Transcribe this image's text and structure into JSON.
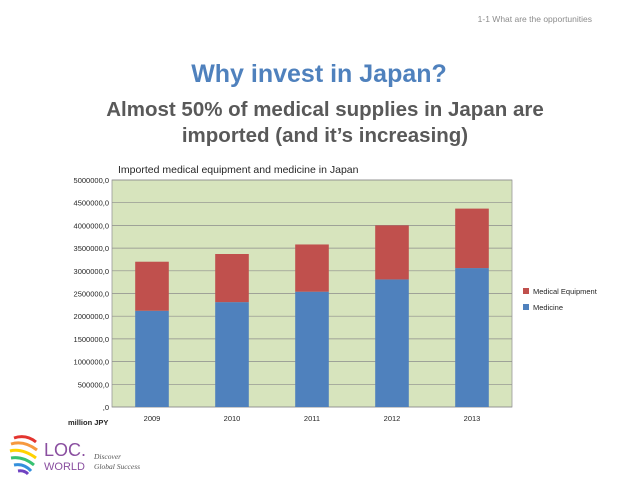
{
  "header": {
    "section_tag": "1-1 What are the opportunities"
  },
  "slide": {
    "title": "Why invest in Japan?",
    "subtitle_line1": "Almost 50% of medical supplies in Japan are",
    "subtitle_line2": "imported (and it’s increasing)"
  },
  "chart_data": {
    "type": "bar",
    "stacked": true,
    "title": "Imported medical equipment and medicine in Japan",
    "xlabel": "",
    "ylabel": "million JPY",
    "categories": [
      "2009",
      "2010",
      "2011",
      "2012",
      "2013"
    ],
    "series": [
      {
        "name": "Medicine",
        "color": "#4f81bd",
        "values": [
          2120000,
          2310000,
          2540000,
          2810000,
          3060000
        ]
      },
      {
        "name": "Medical Equipment",
        "color": "#c0504d",
        "values": [
          1080000,
          1060000,
          1040000,
          1190000,
          1310000
        ]
      }
    ],
    "ylim": [
      0,
      5000000
    ],
    "yticks": [
      "0",
      "500000,0",
      "1000000,0",
      "1500000,0",
      "2000000,0",
      "2500000,0",
      "3000000,0",
      "3500000,0",
      "4000000,0",
      "4500000,0",
      "5000000,0"
    ],
    "ytick_labels": [
      ",0",
      "500000,0",
      "1000000,0",
      "1500000,0",
      "2000000,0",
      "2500000,0",
      "3000000,0",
      "3500000,0",
      "4000000,0",
      "4500000,0",
      "5000000,0"
    ],
    "grid": true,
    "plot_background": "#d7e4bd",
    "legend_position": "right",
    "legend": [
      "Medical Equipment",
      "Medicine"
    ]
  },
  "logo": {
    "brand_text": "LOC.",
    "brand_text2": "WORLD",
    "tagline1": "Discover",
    "tagline2": "Global Success"
  }
}
